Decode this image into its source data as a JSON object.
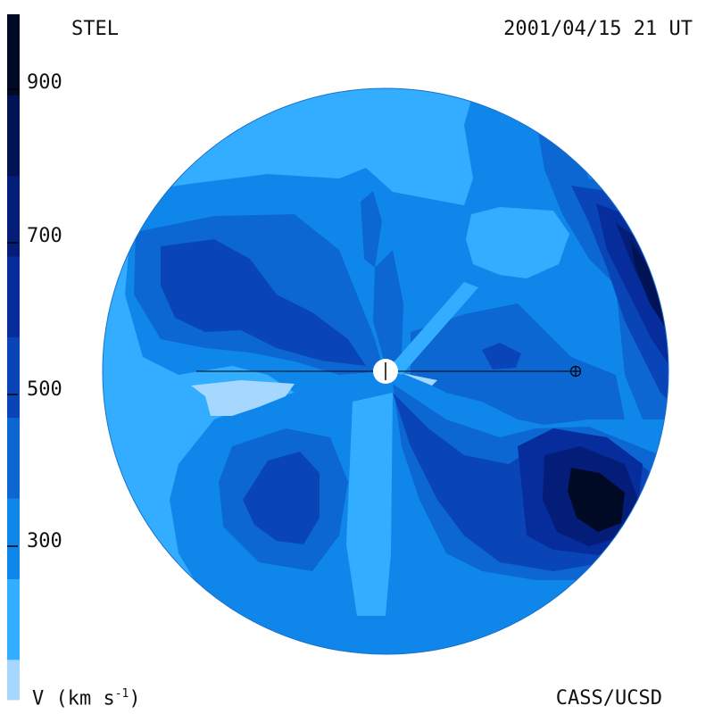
{
  "header": {
    "source": "STEL",
    "timestamp": "2001/04/15 21 UT"
  },
  "footer": {
    "quantity": "V (km s",
    "quantity_exp": "-1",
    "quantity_close": ")",
    "credit": "CASS/UCSD"
  },
  "colorbar": {
    "tick_labels": [
      "900",
      "700",
      "500",
      "300"
    ],
    "levels": [
      {
        "min": 200,
        "max": 250,
        "color": "#a6d8ff"
      },
      {
        "min": 250,
        "max": 350,
        "color": "#33adff"
      },
      {
        "min": 350,
        "max": 450,
        "color": "#0f87ea"
      },
      {
        "min": 450,
        "max": 550,
        "color": "#0d67d3"
      },
      {
        "min": 550,
        "max": 650,
        "color": "#0a45b8"
      },
      {
        "min": 650,
        "max": 750,
        "color": "#072d9c"
      },
      {
        "min": 750,
        "max": 850,
        "color": "#041d78"
      },
      {
        "min": 850,
        "max": 950,
        "color": "#021355"
      },
      {
        "min": 950,
        "max": 1050,
        "color": "#000a25"
      }
    ]
  },
  "map": {
    "background_color": "#33adff",
    "center_marker": "sun",
    "earth_marker": "earth-symbol"
  }
}
